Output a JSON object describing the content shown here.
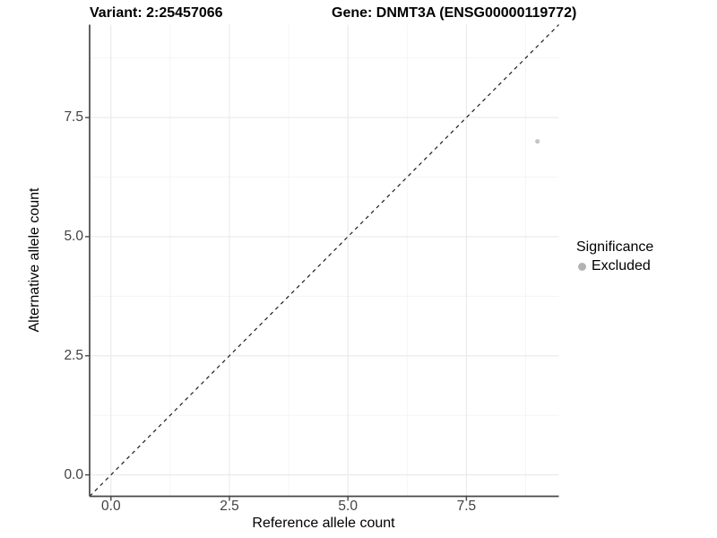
{
  "title": {
    "variant_label": "Variant: 2:25457066",
    "gene_label": "Gene: DNMT3A (ENSG00000119772)"
  },
  "x_axis": {
    "title": "Reference allele count",
    "tick_labels": [
      "0.0",
      "2.5",
      "5.0",
      "7.5"
    ]
  },
  "y_axis": {
    "title": "Alternative allele count",
    "tick_labels": [
      "0.0",
      "2.5",
      "5.0",
      "7.5"
    ]
  },
  "legend": {
    "title": "Significance",
    "items": [
      {
        "label": "Excluded",
        "color": "#b3b3b3"
      }
    ]
  },
  "chart_data": {
    "type": "scatter",
    "title": "Variant: 2:25457066   Gene: DNMT3A (ENSG00000119772)",
    "xlabel": "Reference allele count",
    "ylabel": "Alternative allele count",
    "xlim": [
      -0.45,
      9.45
    ],
    "ylim": [
      -0.45,
      9.45
    ],
    "x_major_ticks": [
      0,
      2.5,
      5,
      7.5
    ],
    "y_major_ticks": [
      0,
      2.5,
      5,
      7.5
    ],
    "x_minor_ticks": [
      1.25,
      3.75,
      6.25,
      8.75
    ],
    "y_minor_ticks": [
      1.25,
      3.75,
      6.25,
      8.75
    ],
    "grid": true,
    "legend_position": "right",
    "series": [
      {
        "name": "Excluded",
        "color": "#c4c4c4",
        "points": [
          {
            "x": 9,
            "y": 7
          }
        ]
      }
    ],
    "reference_line": {
      "type": "identity",
      "equation": "y = x",
      "style": "dashed",
      "color": "#1c1c1c"
    }
  },
  "colors": {
    "background": "#ffffff",
    "grid_major": "#e9e9e9",
    "grid_minor": "#f4f4f4",
    "axis_line": "#474747",
    "tick_mark": "#474747",
    "tick_label": "#424242",
    "point": "#c4c4c4",
    "legend_dot": "#b3b3b3",
    "dashed_line": "#1c1c1c"
  }
}
